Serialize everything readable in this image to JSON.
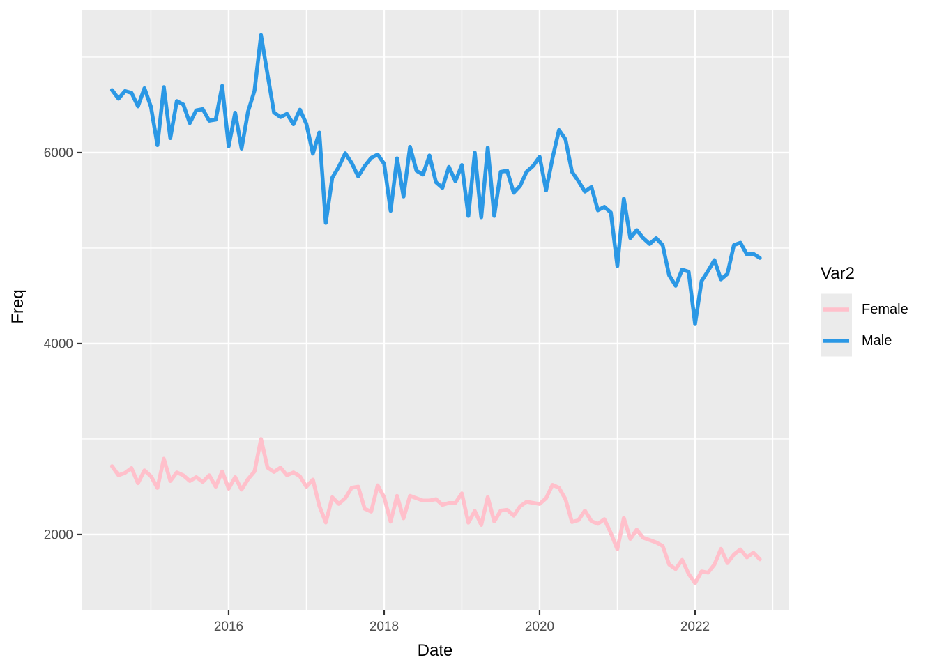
{
  "figure": {
    "xlabel": "Date",
    "ylabel": "Freq",
    "x_tick_labels": [
      "2016",
      "2018",
      "2020",
      "2022"
    ],
    "y_tick_labels": [
      "2000",
      "4000",
      "6000"
    ]
  },
  "legend": {
    "title": "Var2",
    "items": [
      {
        "label": "Female",
        "color": "#FFC0CB"
      },
      {
        "label": "Male",
        "color": "#2B98E5"
      }
    ]
  },
  "colors": {
    "panel_bg": "#EBEBEB",
    "grid": "#FFFFFF",
    "tick_mark": "#333333",
    "tick_label": "#4D4D4D",
    "axis_title": "#000000",
    "female_line": "#FFC0CB",
    "male_line": "#2B98E5"
  },
  "chart_data": {
    "type": "line",
    "title": "",
    "xlabel": "Date",
    "ylabel": "Freq",
    "legend_title": "Var2",
    "legend_position": "right",
    "grid": true,
    "x_axis": {
      "unit": "decimal_year",
      "major_ticks": [
        2016,
        2018,
        2020,
        2022
      ],
      "minor_ticks": [
        2015,
        2017,
        2019,
        2021,
        2023
      ],
      "range": [
        2014.108,
        2023.211
      ]
    },
    "y_axis": {
      "major_ticks": [
        2000,
        4000,
        6000
      ],
      "minor_ticks": [
        3000,
        5000,
        7000
      ],
      "range": [
        1204,
        7496
      ]
    },
    "x_start_year": 2014.5,
    "x_interval": "monthly",
    "x_span_note": "monthly points from Jul 2014 to Nov 2022",
    "series": [
      {
        "name": "Female",
        "color": "#FFC0CB",
        "values": [
          2715,
          2620,
          2645,
          2695,
          2537,
          2671,
          2610,
          2488,
          2793,
          2560,
          2650,
          2620,
          2560,
          2600,
          2550,
          2620,
          2500,
          2660,
          2480,
          2600,
          2470,
          2580,
          2660,
          3000,
          2700,
          2655,
          2700,
          2620,
          2650,
          2610,
          2500,
          2575,
          2300,
          2125,
          2390,
          2320,
          2380,
          2490,
          2500,
          2270,
          2240,
          2515,
          2390,
          2135,
          2405,
          2170,
          2405,
          2380,
          2355,
          2355,
          2370,
          2310,
          2330,
          2330,
          2430,
          2124,
          2246,
          2100,
          2392,
          2136,
          2250,
          2258,
          2197,
          2295,
          2343,
          2331,
          2319,
          2380,
          2520,
          2489,
          2370,
          2130,
          2150,
          2250,
          2140,
          2112,
          2160,
          2015,
          1845,
          2173,
          1954,
          2051,
          1966,
          1942,
          1917,
          1881,
          1686,
          1637,
          1734,
          1588,
          1490,
          1613,
          1600,
          1686,
          1850,
          1700,
          1790,
          1844,
          1760,
          1810,
          1740
        ]
      },
      {
        "name": "Male",
        "color": "#2B98E5",
        "values": [
          6655,
          6564,
          6645,
          6626,
          6484,
          6674,
          6480,
          6078,
          6686,
          6151,
          6540,
          6504,
          6309,
          6443,
          6455,
          6334,
          6345,
          6698,
          6066,
          6418,
          6042,
          6430,
          6650,
          7230,
          6820,
          6420,
          6372,
          6406,
          6297,
          6450,
          6300,
          5988,
          6210,
          5263,
          5737,
          5850,
          5993,
          5890,
          5750,
          5859,
          5944,
          5980,
          5883,
          5390,
          5940,
          5540,
          6060,
          5810,
          5770,
          5970,
          5690,
          5630,
          5850,
          5700,
          5870,
          5336,
          6000,
          5323,
          6053,
          5336,
          5798,
          5810,
          5579,
          5652,
          5800,
          5860,
          5956,
          5604,
          5944,
          6236,
          6139,
          5798,
          5701,
          5591,
          5640,
          5396,
          5432,
          5372,
          4812,
          5518,
          5104,
          5189,
          5104,
          5043,
          5104,
          5031,
          4715,
          4605,
          4775,
          4752,
          4204,
          4654,
          4760,
          4874,
          4672,
          4730,
          5031,
          5056,
          4934,
          4940,
          4897
        ]
      }
    ]
  }
}
